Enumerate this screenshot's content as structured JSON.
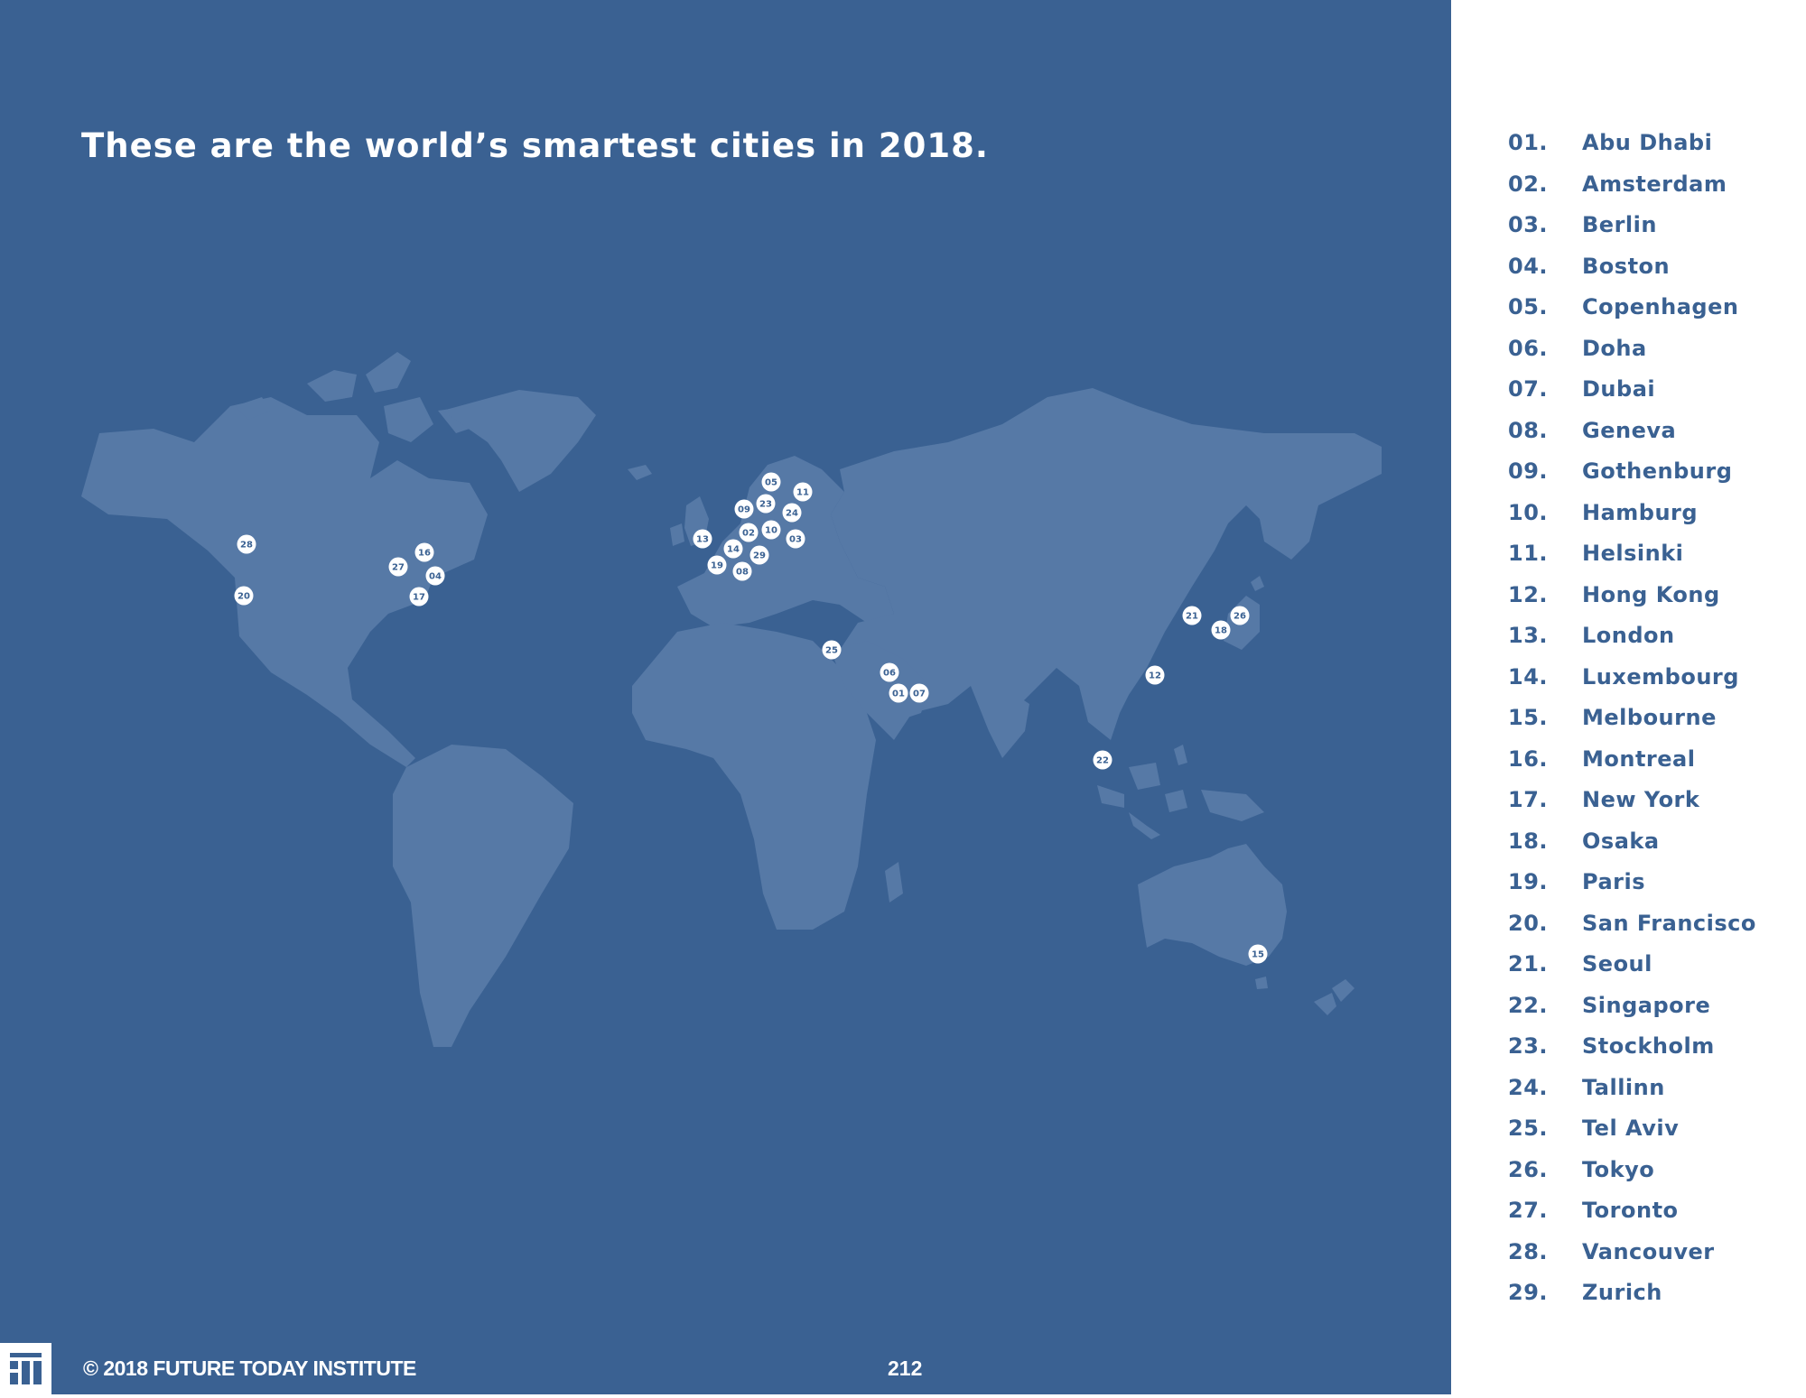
{
  "title": "These are the world’s smartest cities in 2018.",
  "colors": {
    "background": "#3a6192",
    "land": "#5679a6",
    "marker": "#ffffff",
    "list_text": "#3a6192",
    "panel": "#ffffff"
  },
  "cities": [
    {
      "num": "01.",
      "name": "Abu Dhabi"
    },
    {
      "num": "02.",
      "name": "Amsterdam"
    },
    {
      "num": "03.",
      "name": "Berlin"
    },
    {
      "num": "04.",
      "name": "Boston"
    },
    {
      "num": "05.",
      "name": "Copenhagen"
    },
    {
      "num": "06.",
      "name": "Doha"
    },
    {
      "num": "07.",
      "name": "Dubai"
    },
    {
      "num": "08.",
      "name": "Geneva"
    },
    {
      "num": "09.",
      "name": "Gothenburg"
    },
    {
      "num": "10.",
      "name": "Hamburg"
    },
    {
      "num": "11.",
      "name": "Helsinki"
    },
    {
      "num": "12.",
      "name": "Hong Kong"
    },
    {
      "num": "13.",
      "name": "London"
    },
    {
      "num": "14.",
      "name": "Luxembourg"
    },
    {
      "num": "15.",
      "name": "Melbourne"
    },
    {
      "num": "16.",
      "name": "Montreal"
    },
    {
      "num": "17.",
      "name": "New York"
    },
    {
      "num": "18.",
      "name": "Osaka"
    },
    {
      "num": "19.",
      "name": "Paris"
    },
    {
      "num": "20.",
      "name": "San Francisco"
    },
    {
      "num": "21.",
      "name": "Seoul"
    },
    {
      "num": "22.",
      "name": "Singapore"
    },
    {
      "num": "23.",
      "name": "Stockholm"
    },
    {
      "num": "24.",
      "name": "Tallinn"
    },
    {
      "num": "25.",
      "name": "Tel Aviv"
    },
    {
      "num": "26.",
      "name": "Tokyo"
    },
    {
      "num": "27.",
      "name": "Toronto"
    },
    {
      "num": "28.",
      "name": "Vancouver"
    },
    {
      "num": "29.",
      "name": "Zurich"
    }
  ],
  "map_markers": [
    "01",
    "02",
    "03",
    "04",
    "05",
    "06",
    "07",
    "08",
    "09",
    "10",
    "11",
    "12",
    "13",
    "14",
    "15",
    "16",
    "17",
    "18",
    "19",
    "20",
    "21",
    "22",
    "23",
    "24",
    "25",
    "26",
    "27",
    "28",
    "29"
  ],
  "footer": {
    "copyright": "© 2018 FUTURE TODAY INSTITUTE",
    "page_number": "212"
  }
}
